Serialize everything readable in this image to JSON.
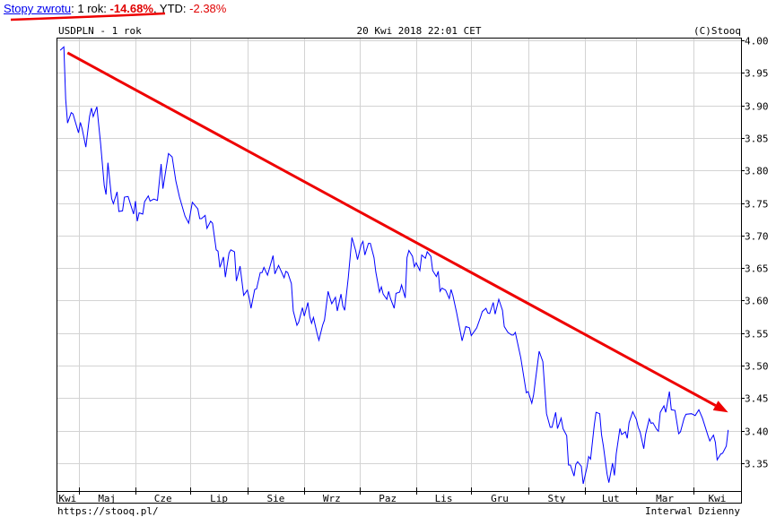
{
  "header": {
    "link": "Stopy zwrotu",
    "sep1": ": 1 rok: ",
    "one_year": "-14.68%",
    "sep2": ", YTD: ",
    "ytd": "-2.38%"
  },
  "colors": {
    "series": "#0000ff",
    "annotation": "#ee0000",
    "grid": "#d3d3d3",
    "negative": "#e00000",
    "link": "#0000ee"
  },
  "chart_data": {
    "type": "line",
    "title": "USDPLN - 1 rok",
    "timestamp": "20 Kwi 2018 22:01 CET",
    "copyright": "(C)Stooq",
    "source": "https://stooq.pl/",
    "interval": "Interwal Dzienny",
    "xlim": [
      "2017-04-19",
      "2018-04-27"
    ],
    "ylim": [
      3.307,
      4.003
    ],
    "y_axis_side": "right",
    "grid": true,
    "month_labels": [
      "Kwi",
      "Maj",
      "Cze",
      "Lip",
      "Sie",
      "Wrz",
      "Paz",
      "Lis",
      "Gru",
      "Sty",
      "Lut",
      "Mar",
      "Kwi"
    ],
    "month_starts": [
      "2017-05-01",
      "2017-06-01",
      "2017-07-01",
      "2017-08-01",
      "2017-09-01",
      "2017-10-01",
      "2017-11-01",
      "2017-12-01",
      "2018-01-01",
      "2018-02-01",
      "2018-03-01",
      "2018-04-01"
    ],
    "y_ticks": [
      "4.00",
      "3.95",
      "3.90",
      "3.85",
      "3.80",
      "3.75",
      "3.70",
      "3.65",
      "3.60",
      "3.55",
      "3.50",
      "3.45",
      "3.40",
      "3.35"
    ],
    "annotation_arrow": {
      "from": [
        "2017-04-25",
        3.981
      ],
      "to": [
        "2018-04-20",
        3.428
      ]
    },
    "series": [
      {
        "x": [
          "2017-04-21",
          "2017-04-23",
          "2017-04-24",
          "2017-04-25",
          "2017-04-27",
          "2017-04-28",
          "2017-05-01",
          "2017-05-02",
          "2017-05-03",
          "2017-05-05",
          "2017-05-07",
          "2017-05-08",
          "2017-05-09",
          "2017-05-11",
          "2017-05-13",
          "2017-05-15",
          "2017-05-16",
          "2017-05-17",
          "2017-05-19",
          "2017-05-20",
          "2017-05-22",
          "2017-05-23",
          "2017-05-25",
          "2017-05-26",
          "2017-05-28",
          "2017-05-31",
          "2017-06-01",
          "2017-06-02",
          "2017-06-03",
          "2017-06-05",
          "2017-06-06",
          "2017-06-08",
          "2017-06-09",
          "2017-06-11",
          "2017-06-13",
          "2017-06-15",
          "2017-06-16",
          "2017-06-19",
          "2017-06-21",
          "2017-06-23",
          "2017-06-25",
          "2017-06-28",
          "2017-06-30",
          "2017-07-02",
          "2017-07-05",
          "2017-07-06",
          "2017-07-07",
          "2017-07-09",
          "2017-07-10",
          "2017-07-12",
          "2017-07-13",
          "2017-07-15",
          "2017-07-16",
          "2017-07-17",
          "2017-07-19",
          "2017-07-20",
          "2017-07-22",
          "2017-07-23",
          "2017-07-25",
          "2017-07-26",
          "2017-07-28",
          "2017-07-30",
          "2017-08-01",
          "2017-08-02",
          "2017-08-03",
          "2017-08-05",
          "2017-08-06",
          "2017-08-08",
          "2017-08-09",
          "2017-08-10",
          "2017-08-12",
          "2017-08-15",
          "2017-08-16",
          "2017-08-18",
          "2017-08-21",
          "2017-08-22",
          "2017-08-23",
          "2017-08-25",
          "2017-08-26",
          "2017-08-28",
          "2017-08-29",
          "2017-08-31",
          "2017-09-01",
          "2017-09-03",
          "2017-09-04",
          "2017-09-05",
          "2017-09-06",
          "2017-09-08",
          "2017-09-09",
          "2017-09-11",
          "2017-09-12",
          "2017-09-14",
          "2017-09-15",
          "2017-09-16",
          "2017-09-18",
          "2017-09-19",
          "2017-09-21",
          "2017-09-22",
          "2017-09-23",
          "2017-09-25",
          "2017-09-27",
          "2017-09-29",
          "2017-09-30",
          "2017-10-02",
          "2017-10-03",
          "2017-10-04",
          "2017-10-06",
          "2017-10-07",
          "2017-10-09",
          "2017-10-10",
          "2017-10-12",
          "2017-10-13",
          "2017-10-14",
          "2017-10-16",
          "2017-10-17",
          "2017-10-18",
          "2017-10-20",
          "2017-10-21",
          "2017-10-23",
          "2017-10-24",
          "2017-10-26",
          "2017-10-27",
          "2017-10-28",
          "2017-10-30",
          "2017-10-31",
          "2017-11-01",
          "2017-11-03",
          "2017-11-04",
          "2017-11-06",
          "2017-11-07",
          "2017-11-09",
          "2017-11-10",
          "2017-11-12",
          "2017-11-13",
          "2017-11-14",
          "2017-11-15",
          "2017-11-17",
          "2017-11-19",
          "2017-11-20",
          "2017-11-21",
          "2017-11-23",
          "2017-11-26",
          "2017-11-28",
          "2017-11-30",
          "2017-12-01",
          "2017-12-03",
          "2017-12-04",
          "2017-12-06",
          "2017-12-07",
          "2017-12-09",
          "2017-12-10",
          "2017-12-11",
          "2017-12-13",
          "2017-12-14",
          "2017-12-16",
          "2017-12-18",
          "2017-12-19",
          "2017-12-21",
          "2017-12-23",
          "2017-12-24",
          "2017-12-25",
          "2017-12-28",
          "2017-12-31",
          "2018-01-01",
          "2018-01-03",
          "2018-01-04",
          "2018-01-07",
          "2018-01-09",
          "2018-01-11",
          "2018-01-13",
          "2018-01-14",
          "2018-01-16",
          "2018-01-17",
          "2018-01-19",
          "2018-01-20",
          "2018-01-22",
          "2018-01-23",
          "2018-01-24",
          "2018-01-26",
          "2018-01-27",
          "2018-01-28",
          "2018-01-30",
          "2018-01-31",
          "2018-02-02",
          "2018-02-03",
          "2018-02-04",
          "2018-02-06",
          "2018-02-07",
          "2018-02-09",
          "2018-02-10",
          "2018-02-11",
          "2018-02-13",
          "2018-02-14",
          "2018-02-16",
          "2018-02-17",
          "2018-02-18",
          "2018-02-20",
          "2018-02-21",
          "2018-02-23",
          "2018-02-24",
          "2018-02-25",
          "2018-02-27",
          "2018-03-01",
          "2018-03-02",
          "2018-03-03",
          "2018-03-05",
          "2018-03-06",
          "2018-03-08",
          "2018-03-09",
          "2018-03-10",
          "2018-03-12",
          "2018-03-13",
          "2018-03-14",
          "2018-03-16",
          "2018-03-17",
          "2018-03-19",
          "2018-03-20",
          "2018-03-22",
          "2018-03-24",
          "2018-03-25",
          "2018-03-27",
          "2018-03-28",
          "2018-03-31",
          "2018-04-02",
          "2018-04-04",
          "2018-04-06",
          "2018-04-09",
          "2018-04-10",
          "2018-04-12",
          "2018-04-13",
          "2018-04-14",
          "2018-04-16",
          "2018-04-17",
          "2018-04-19",
          "2018-04-20"
        ],
        "y": [
          3.985,
          3.99,
          3.91,
          3.873,
          3.889,
          3.887,
          3.858,
          3.874,
          3.864,
          3.836,
          3.883,
          3.896,
          3.883,
          3.898,
          3.842,
          3.777,
          3.763,
          3.812,
          3.757,
          3.749,
          3.767,
          3.737,
          3.738,
          3.759,
          3.76,
          3.733,
          3.753,
          3.722,
          3.735,
          3.733,
          3.752,
          3.761,
          3.753,
          3.756,
          3.754,
          3.81,
          3.772,
          3.826,
          3.821,
          3.784,
          3.759,
          3.73,
          3.719,
          3.751,
          3.741,
          3.726,
          3.726,
          3.731,
          3.711,
          3.722,
          3.719,
          3.678,
          3.676,
          3.651,
          3.667,
          3.636,
          3.673,
          3.678,
          3.675,
          3.63,
          3.653,
          3.608,
          3.616,
          3.604,
          3.588,
          3.617,
          3.618,
          3.643,
          3.643,
          3.651,
          3.639,
          3.669,
          3.641,
          3.654,
          3.635,
          3.645,
          3.643,
          3.626,
          3.584,
          3.562,
          3.567,
          3.589,
          3.576,
          3.597,
          3.575,
          3.565,
          3.574,
          3.549,
          3.539,
          3.562,
          3.57,
          3.614,
          3.604,
          3.595,
          3.605,
          3.584,
          3.61,
          3.592,
          3.585,
          3.635,
          3.697,
          3.677,
          3.663,
          3.686,
          3.691,
          3.67,
          3.688,
          3.688,
          3.666,
          3.644,
          3.613,
          3.621,
          3.61,
          3.602,
          3.614,
          3.603,
          3.588,
          3.611,
          3.613,
          3.624,
          3.604,
          3.666,
          3.677,
          3.668,
          3.652,
          3.658,
          3.646,
          3.67,
          3.665,
          3.675,
          3.668,
          3.646,
          3.637,
          3.645,
          3.614,
          3.619,
          3.616,
          3.603,
          3.617,
          3.608,
          3.582,
          3.538,
          3.56,
          3.558,
          3.546,
          3.554,
          3.558,
          3.574,
          3.583,
          3.588,
          3.581,
          3.58,
          3.597,
          3.579,
          3.602,
          3.585,
          3.56,
          3.551,
          3.547,
          3.547,
          3.551,
          3.512,
          3.458,
          3.46,
          3.442,
          3.455,
          3.522,
          3.506,
          3.426,
          3.405,
          3.405,
          3.428,
          3.403,
          3.419,
          3.403,
          3.392,
          3.347,
          3.347,
          3.33,
          3.348,
          3.352,
          3.345,
          3.318,
          3.343,
          3.36,
          3.356,
          3.408,
          3.428,
          3.426,
          3.394,
          3.376,
          3.333,
          3.32,
          3.35,
          3.331,
          3.364,
          3.403,
          3.394,
          3.398,
          3.388,
          3.412,
          3.429,
          3.417,
          3.405,
          3.398,
          3.372,
          3.394,
          3.418,
          3.411,
          3.412,
          3.402,
          3.399,
          3.428,
          3.438,
          3.428,
          3.46,
          3.432,
          3.431,
          3.395,
          3.398,
          3.419,
          3.425,
          3.426,
          3.423,
          3.432,
          3.419,
          3.392,
          3.384,
          3.393,
          3.382,
          3.355,
          3.364,
          3.365,
          3.376,
          3.401
        ]
      }
    ]
  }
}
